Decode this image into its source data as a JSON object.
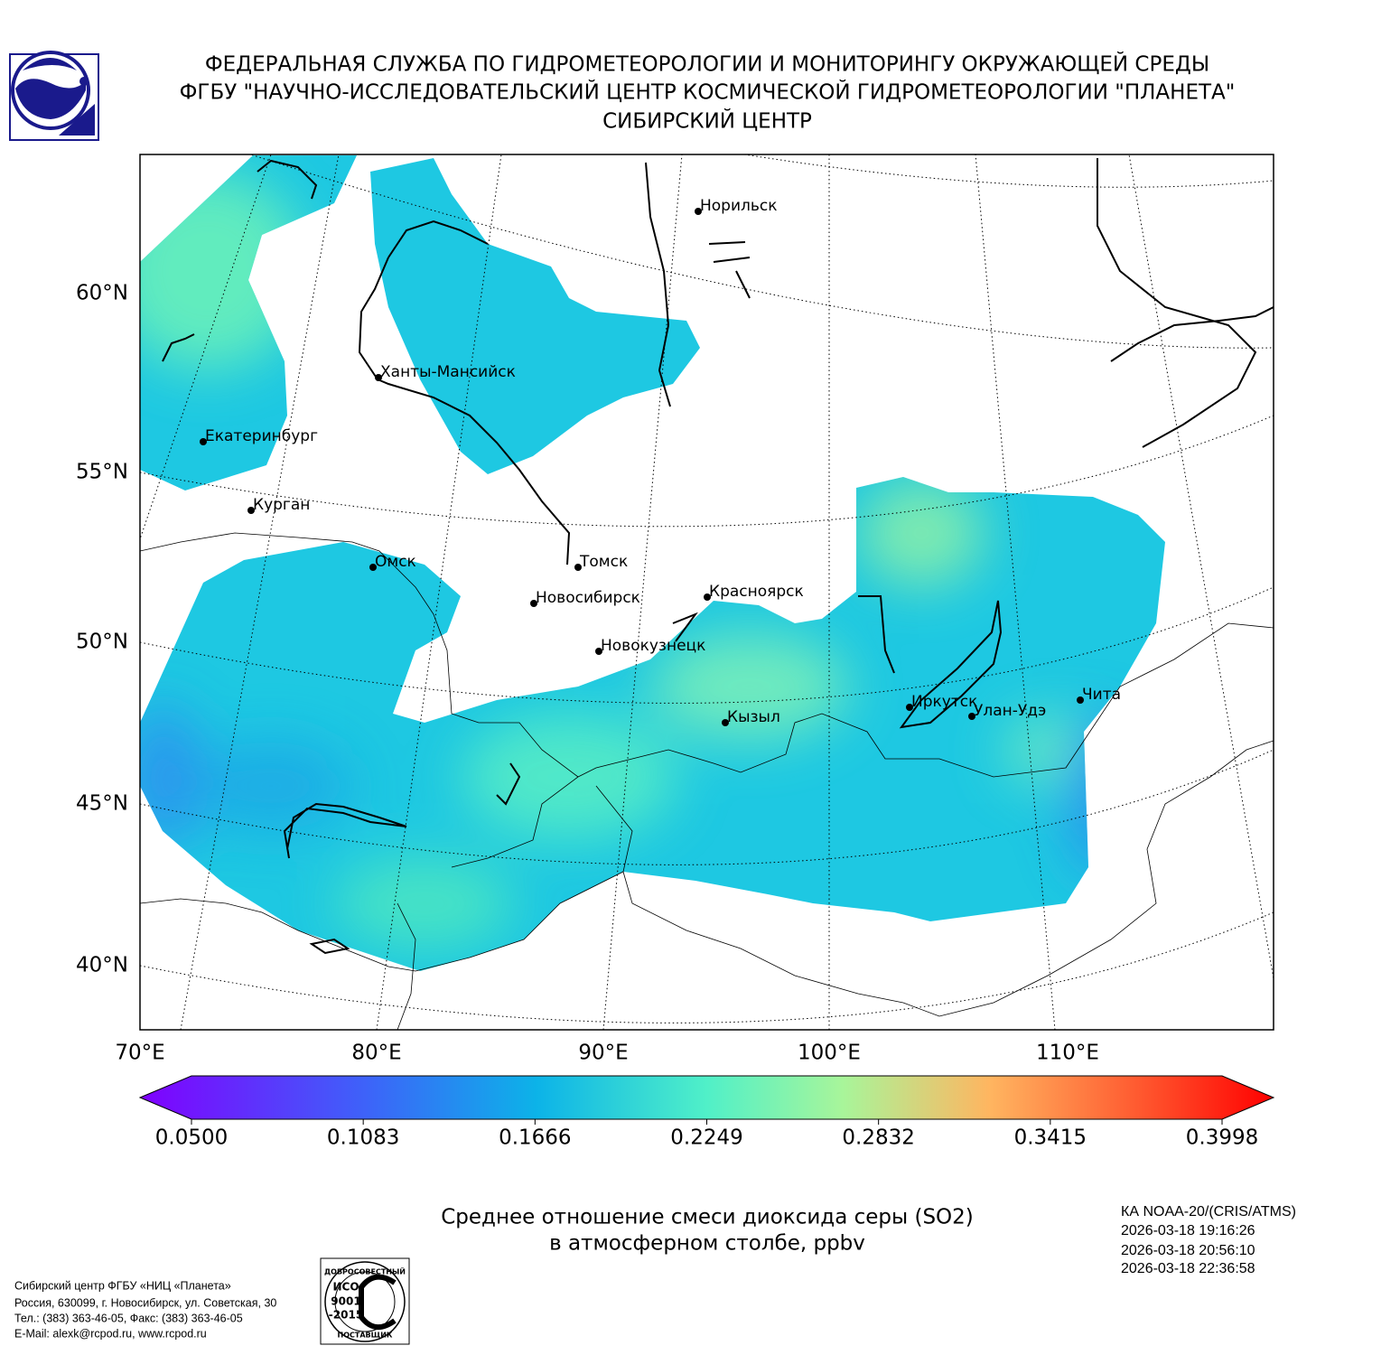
{
  "header": {
    "lines": [
      "ФЕДЕРАЛЬНАЯ СЛУЖБА ПО ГИДРОМЕТЕОРОЛОГИИ И МОНИТОРИНГУ ОКРУЖАЮЩЕЙ СРЕДЫ",
      "ФГБУ \"НАУЧНО-ИССЛЕДОВАТЕЛЬСКИЙ ЦЕНТР КОСМИЧЕСКОЙ ГИДРОМЕТЕОРОЛОГИИ \"ПЛАНЕТА\"",
      "СИБИРСКИЙ ЦЕНТР"
    ]
  },
  "map": {
    "lat_labels": [
      "60°N",
      "55°N",
      "50°N",
      "45°N",
      "40°N"
    ],
    "lon_labels": [
      "70°E",
      "80°E",
      "90°E",
      "100°E",
      "110°E"
    ],
    "cities": [
      "Норильск",
      "Ханты-Мансийск",
      "Екатеринбург",
      "Курган",
      "Омск",
      "Томск",
      "Новосибирск",
      "Красноярск",
      "Новокузнецк",
      "Кызыл",
      "Иркутск",
      "Улан-Удэ",
      "Чита"
    ]
  },
  "colorbar": {
    "min": 0.05,
    "max": 0.3998,
    "ticks": [
      {
        "value": 0.05,
        "label": "0.0500"
      },
      {
        "value": 0.1083,
        "label": "0.1083"
      },
      {
        "value": 0.1666,
        "label": "0.1666"
      },
      {
        "value": 0.2249,
        "label": "0.2249"
      },
      {
        "value": 0.2832,
        "label": "0.2832"
      },
      {
        "value": 0.3415,
        "label": "0.3415"
      },
      {
        "value": 0.3998,
        "label": "0.3998"
      }
    ]
  },
  "caption": {
    "lines": [
      "Среднее отношение смеси диоксида серы (SO2)",
      "в атмосферном столбе, ppbv"
    ]
  },
  "satellite": {
    "lines": [
      "КА NOAA-20/(CRIS/ATMS)",
      "2026-03-18 19:16:26",
      "2026-03-18 20:56:10",
      "2026-03-18 22:36:58"
    ]
  },
  "footer": {
    "lines": [
      "Сибирский центр ФГБУ «НИЦ «Планета»",
      "Россия, 630099, г. Новосибирск, ул. Советская, 30",
      "Тел.: (383) 363-46-05, Факс: (383) 363-46-05",
      "E-Mail: alexk@rcpod.ru, www.rcpod.ru"
    ]
  },
  "iso_logo": {
    "top": "ДОБРОСОВЕСТНЫЙ",
    "lines": [
      "ИСО",
      "9001",
      "-2015"
    ],
    "bottom": "ПОСТАВЩИК"
  }
}
